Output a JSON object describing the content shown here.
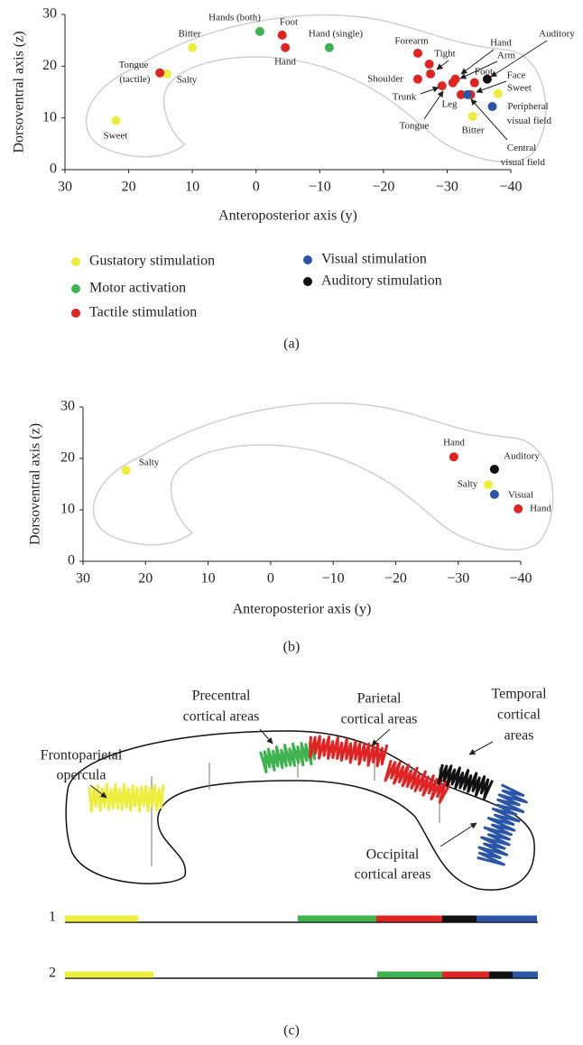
{
  "chart_data": [
    {
      "type": "scatter",
      "panel_label": "(a)",
      "xlabel": "Anteroposterior axis (y)",
      "ylabel": "Dorsoventral axis (z)",
      "xlim": [
        30,
        -40
      ],
      "ylim": [
        0,
        30
      ],
      "xticks": [
        30,
        20,
        10,
        0,
        {
          "value": -10,
          "label": "−10"
        },
        {
          "value": -20,
          "label": "−20"
        },
        {
          "value": -30,
          "label": "−30"
        },
        {
          "value": -40,
          "label": "−40"
        }
      ],
      "yticks": [
        0,
        10,
        20,
        30
      ],
      "legend": true,
      "series": [
        {
          "name": "Gustatory stimulation",
          "color": "#eded3d",
          "x": [
            22,
            10,
            14,
            -38,
            -34
          ],
          "values": [
            9.5,
            23.6,
            18.5,
            14.7,
            10.3
          ],
          "point_labels": [
            "Sweet",
            "Bitter",
            "Salty",
            "Sweet",
            "Bitter"
          ]
        },
        {
          "name": "Motor activation",
          "color": "#3fb34f",
          "x": [
            -0.6,
            -11.5
          ],
          "values": [
            26.7,
            23.6
          ],
          "point_labels": [
            "Hands (both)",
            "Hand (single)"
          ]
        },
        {
          "name": "Tactile stimulation",
          "color": "#e02424",
          "x": [
            15.1,
            -4.1,
            -4.6,
            -25.4,
            -27.2,
            -31.3,
            -30.9,
            -34.3,
            -33.7,
            -25.4,
            -29.2,
            -32.2,
            -27.4
          ],
          "values": [
            18.7,
            26,
            23.6,
            22.5,
            20.4,
            17.5,
            16.8,
            16.8,
            14.5,
            17.5,
            16.2,
            14.5,
            18.5
          ],
          "point_labels": [
            "Tongue (tactile)",
            "Foot",
            "Hand",
            "Forearm",
            "Tight",
            "Hand",
            "Arm",
            "Foot",
            "Face",
            "Shoulder",
            "Trunk",
            "Leg",
            "Tongue"
          ]
        },
        {
          "name": "Visual stimulation",
          "color": "#2b55a7",
          "x": [
            -33.2,
            -37.1
          ],
          "values": [
            14.5,
            12.2
          ],
          "point_labels": [
            "Central visual field",
            "Peripheral visual field"
          ]
        },
        {
          "name": "Auditory stimulation",
          "color": "#111111",
          "x": [
            -36.3
          ],
          "values": [
            17.5
          ],
          "point_labels": [
            "Auditory"
          ]
        }
      ]
    },
    {
      "type": "scatter",
      "panel_label": "(b)",
      "xlabel": "Anteroposterior axis (y)",
      "ylabel": "Dorsoventral axis (z)",
      "xlim": [
        30,
        -40
      ],
      "ylim": [
        0,
        30
      ],
      "xticks": [
        30,
        20,
        10,
        0,
        {
          "value": -10,
          "label": "−10"
        },
        {
          "value": -20,
          "label": "−20"
        },
        {
          "value": -30,
          "label": "−30"
        },
        {
          "value": -40,
          "label": "−40"
        }
      ],
      "yticks": [
        0,
        10,
        20,
        30
      ],
      "legend": false,
      "series": [
        {
          "color": "#eded3d",
          "x": [
            23.1,
            -34.8
          ],
          "values": [
            17.7,
            14.9
          ],
          "point_labels": [
            "Salty",
            "Salty"
          ]
        },
        {
          "color": "#e02424",
          "x": [
            -29.3,
            -39.6
          ],
          "values": [
            20.3,
            10.2
          ],
          "point_labels": [
            "Hand",
            "Hand"
          ]
        },
        {
          "color": "#111111",
          "x": [
            -35.8
          ],
          "values": [
            17.9
          ],
          "point_labels": [
            "Auditory"
          ]
        },
        {
          "color": "#2b55a7",
          "x": [
            -35.8
          ],
          "values": [
            13
          ],
          "point_labels": [
            "Visual"
          ]
        }
      ]
    }
  ],
  "diagram": {
    "panel_label": "(c)",
    "labels": [
      {
        "lines": [
          "Frontoparietal",
          "opercula"
        ]
      },
      {
        "lines": [
          "Precentral",
          "cortical areas"
        ]
      },
      {
        "lines": [
          "Parietal",
          "cortical areas"
        ]
      },
      {
        "lines": [
          "Temporal",
          "cortical",
          "areas"
        ]
      },
      {
        "lines": [
          "Occipital",
          "cortical areas"
        ]
      }
    ],
    "rows": [
      "1",
      "2"
    ]
  }
}
